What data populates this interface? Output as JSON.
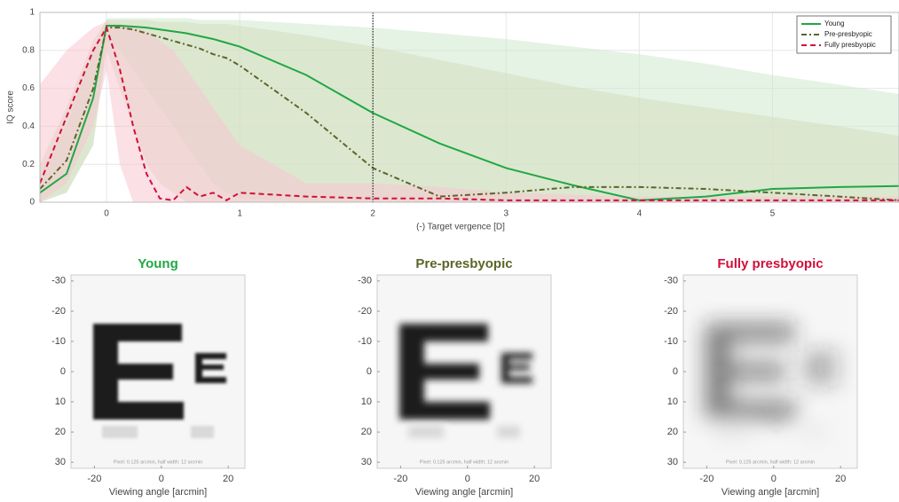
{
  "chart_data": [
    {
      "type": "line",
      "xlabel": "(-) Target vergence [D]",
      "ylabel": "IQ score",
      "x": [
        -0.5,
        -0.3,
        -0.1,
        0,
        0.1,
        0.2,
        0.3,
        0.4,
        0.5,
        0.6,
        0.7,
        0.8,
        0.9,
        1,
        1.5,
        2,
        2.5,
        3,
        3.5,
        4,
        4.5,
        5,
        5.5,
        5.95
      ],
      "xlim": [
        -0.5,
        5.95
      ],
      "ylim": [
        0,
        1
      ],
      "xticks": [
        0,
        1,
        2,
        3,
        4,
        5
      ],
      "yticks": [
        0,
        0.2,
        0.4,
        0.6,
        0.8,
        1
      ],
      "vline": 2,
      "grid": true,
      "legend": "upper right",
      "series": [
        {
          "name": "Young",
          "color": "#1fa843",
          "band_color": "#cfe9cf",
          "dash": "solid",
          "values": [
            0.05,
            0.15,
            0.55,
            0.93,
            0.93,
            0.925,
            0.92,
            0.91,
            0.9,
            0.89,
            0.875,
            0.86,
            0.84,
            0.82,
            0.67,
            0.47,
            0.31,
            0.18,
            0.09,
            0.01,
            0.03,
            0.07,
            0.08,
            0.085
          ],
          "upper": [
            0.15,
            0.4,
            0.8,
            0.97,
            0.97,
            0.97,
            0.97,
            0.97,
            0.97,
            0.97,
            0.96,
            0.96,
            0.96,
            0.96,
            0.94,
            0.92,
            0.89,
            0.86,
            0.82,
            0.78,
            0.73,
            0.67,
            0.62,
            0.57
          ],
          "lower": [
            0,
            0.05,
            0.3,
            0.85,
            0.8,
            0.7,
            0.6,
            0.5,
            0.4,
            0.3,
            0.2,
            0.1,
            0.05,
            0.02,
            0,
            0,
            0,
            0,
            0,
            0,
            0,
            0,
            0,
            0
          ]
        },
        {
          "name": "Pre-presbyopic",
          "color": "#5a6628",
          "band_color": "#d6dcc0",
          "dash": "dashdot",
          "values": [
            0.07,
            0.22,
            0.6,
            0.92,
            0.92,
            0.91,
            0.89,
            0.87,
            0.85,
            0.83,
            0.81,
            0.78,
            0.76,
            0.72,
            0.47,
            0.18,
            0.03,
            0.05,
            0.08,
            0.08,
            0.07,
            0.05,
            0.03,
            0.01
          ],
          "upper": [
            0.2,
            0.5,
            0.85,
            0.96,
            0.96,
            0.96,
            0.96,
            0.95,
            0.95,
            0.95,
            0.94,
            0.94,
            0.94,
            0.93,
            0.88,
            0.82,
            0.75,
            0.68,
            0.61,
            0.55,
            0.5,
            0.45,
            0.4,
            0.35
          ],
          "lower": [
            0,
            0.05,
            0.3,
            0.8,
            0.6,
            0.4,
            0.2,
            0.1,
            0.05,
            0,
            0,
            0,
            0,
            0,
            0,
            0,
            0,
            0,
            0,
            0,
            0,
            0,
            0,
            0
          ]
        },
        {
          "name": "Fully presbyopic",
          "color": "#d0103a",
          "band_color": "#f7c6d0",
          "dash": "dashed",
          "values": [
            0.1,
            0.45,
            0.8,
            0.92,
            0.7,
            0.4,
            0.15,
            0.02,
            0.01,
            0.08,
            0.03,
            0.05,
            0.01,
            0.05,
            0.03,
            0.02,
            0.02,
            0.01,
            0.01,
            0.01,
            0.01,
            0.01,
            0.01,
            0.01
          ],
          "upper": [
            0.62,
            0.8,
            0.92,
            0.95,
            0.94,
            0.92,
            0.9,
            0.85,
            0.8,
            0.7,
            0.6,
            0.5,
            0.4,
            0.3,
            0.1,
            0.1,
            0.08,
            0.05,
            0.04,
            0.03,
            0.03,
            0.03,
            0.03,
            0.03
          ],
          "lower": [
            0,
            0.1,
            0.4,
            0.7,
            0.2,
            0,
            0,
            0,
            0,
            0,
            0,
            0,
            0,
            0,
            0,
            0,
            0,
            0,
            0,
            0,
            0,
            0,
            0,
            0
          ]
        }
      ]
    },
    {
      "type": "image",
      "title": "Young",
      "title_color": "#1fa843",
      "xlabel": "Viewing angle [arcmin]",
      "xlim": [
        -27,
        25
      ],
      "ylim": [
        -32,
        32
      ],
      "xticks": [
        -20,
        0,
        20
      ],
      "yticks": [
        -30,
        -20,
        -10,
        0,
        10,
        20,
        30
      ],
      "note": "Pixel: 0.125 arcmin, half width: 12 arcmin"
    },
    {
      "type": "image",
      "title": "Pre-presbyopic",
      "title_color": "#5a6628",
      "xlabel": "Viewing angle [arcmin]",
      "xlim": [
        -27,
        25
      ],
      "ylim": [
        -32,
        32
      ],
      "xticks": [
        -20,
        0,
        20
      ],
      "yticks": [
        -30,
        -20,
        -10,
        0,
        10,
        20,
        30
      ],
      "note": "Pixel: 0.125 arcmin, half width: 12 arcmin"
    },
    {
      "type": "image",
      "title": "Fully presbyopic",
      "title_color": "#d0103a",
      "xlabel": "Viewing angle [arcmin]",
      "xlim": [
        -27,
        25
      ],
      "ylim": [
        -32,
        32
      ],
      "xticks": [
        -20,
        0,
        20
      ],
      "yticks": [
        -30,
        -20,
        -10,
        0,
        10,
        20,
        30
      ],
      "note": "Pixel: 0.125 arcmin, half width: 12 arcmin"
    }
  ]
}
